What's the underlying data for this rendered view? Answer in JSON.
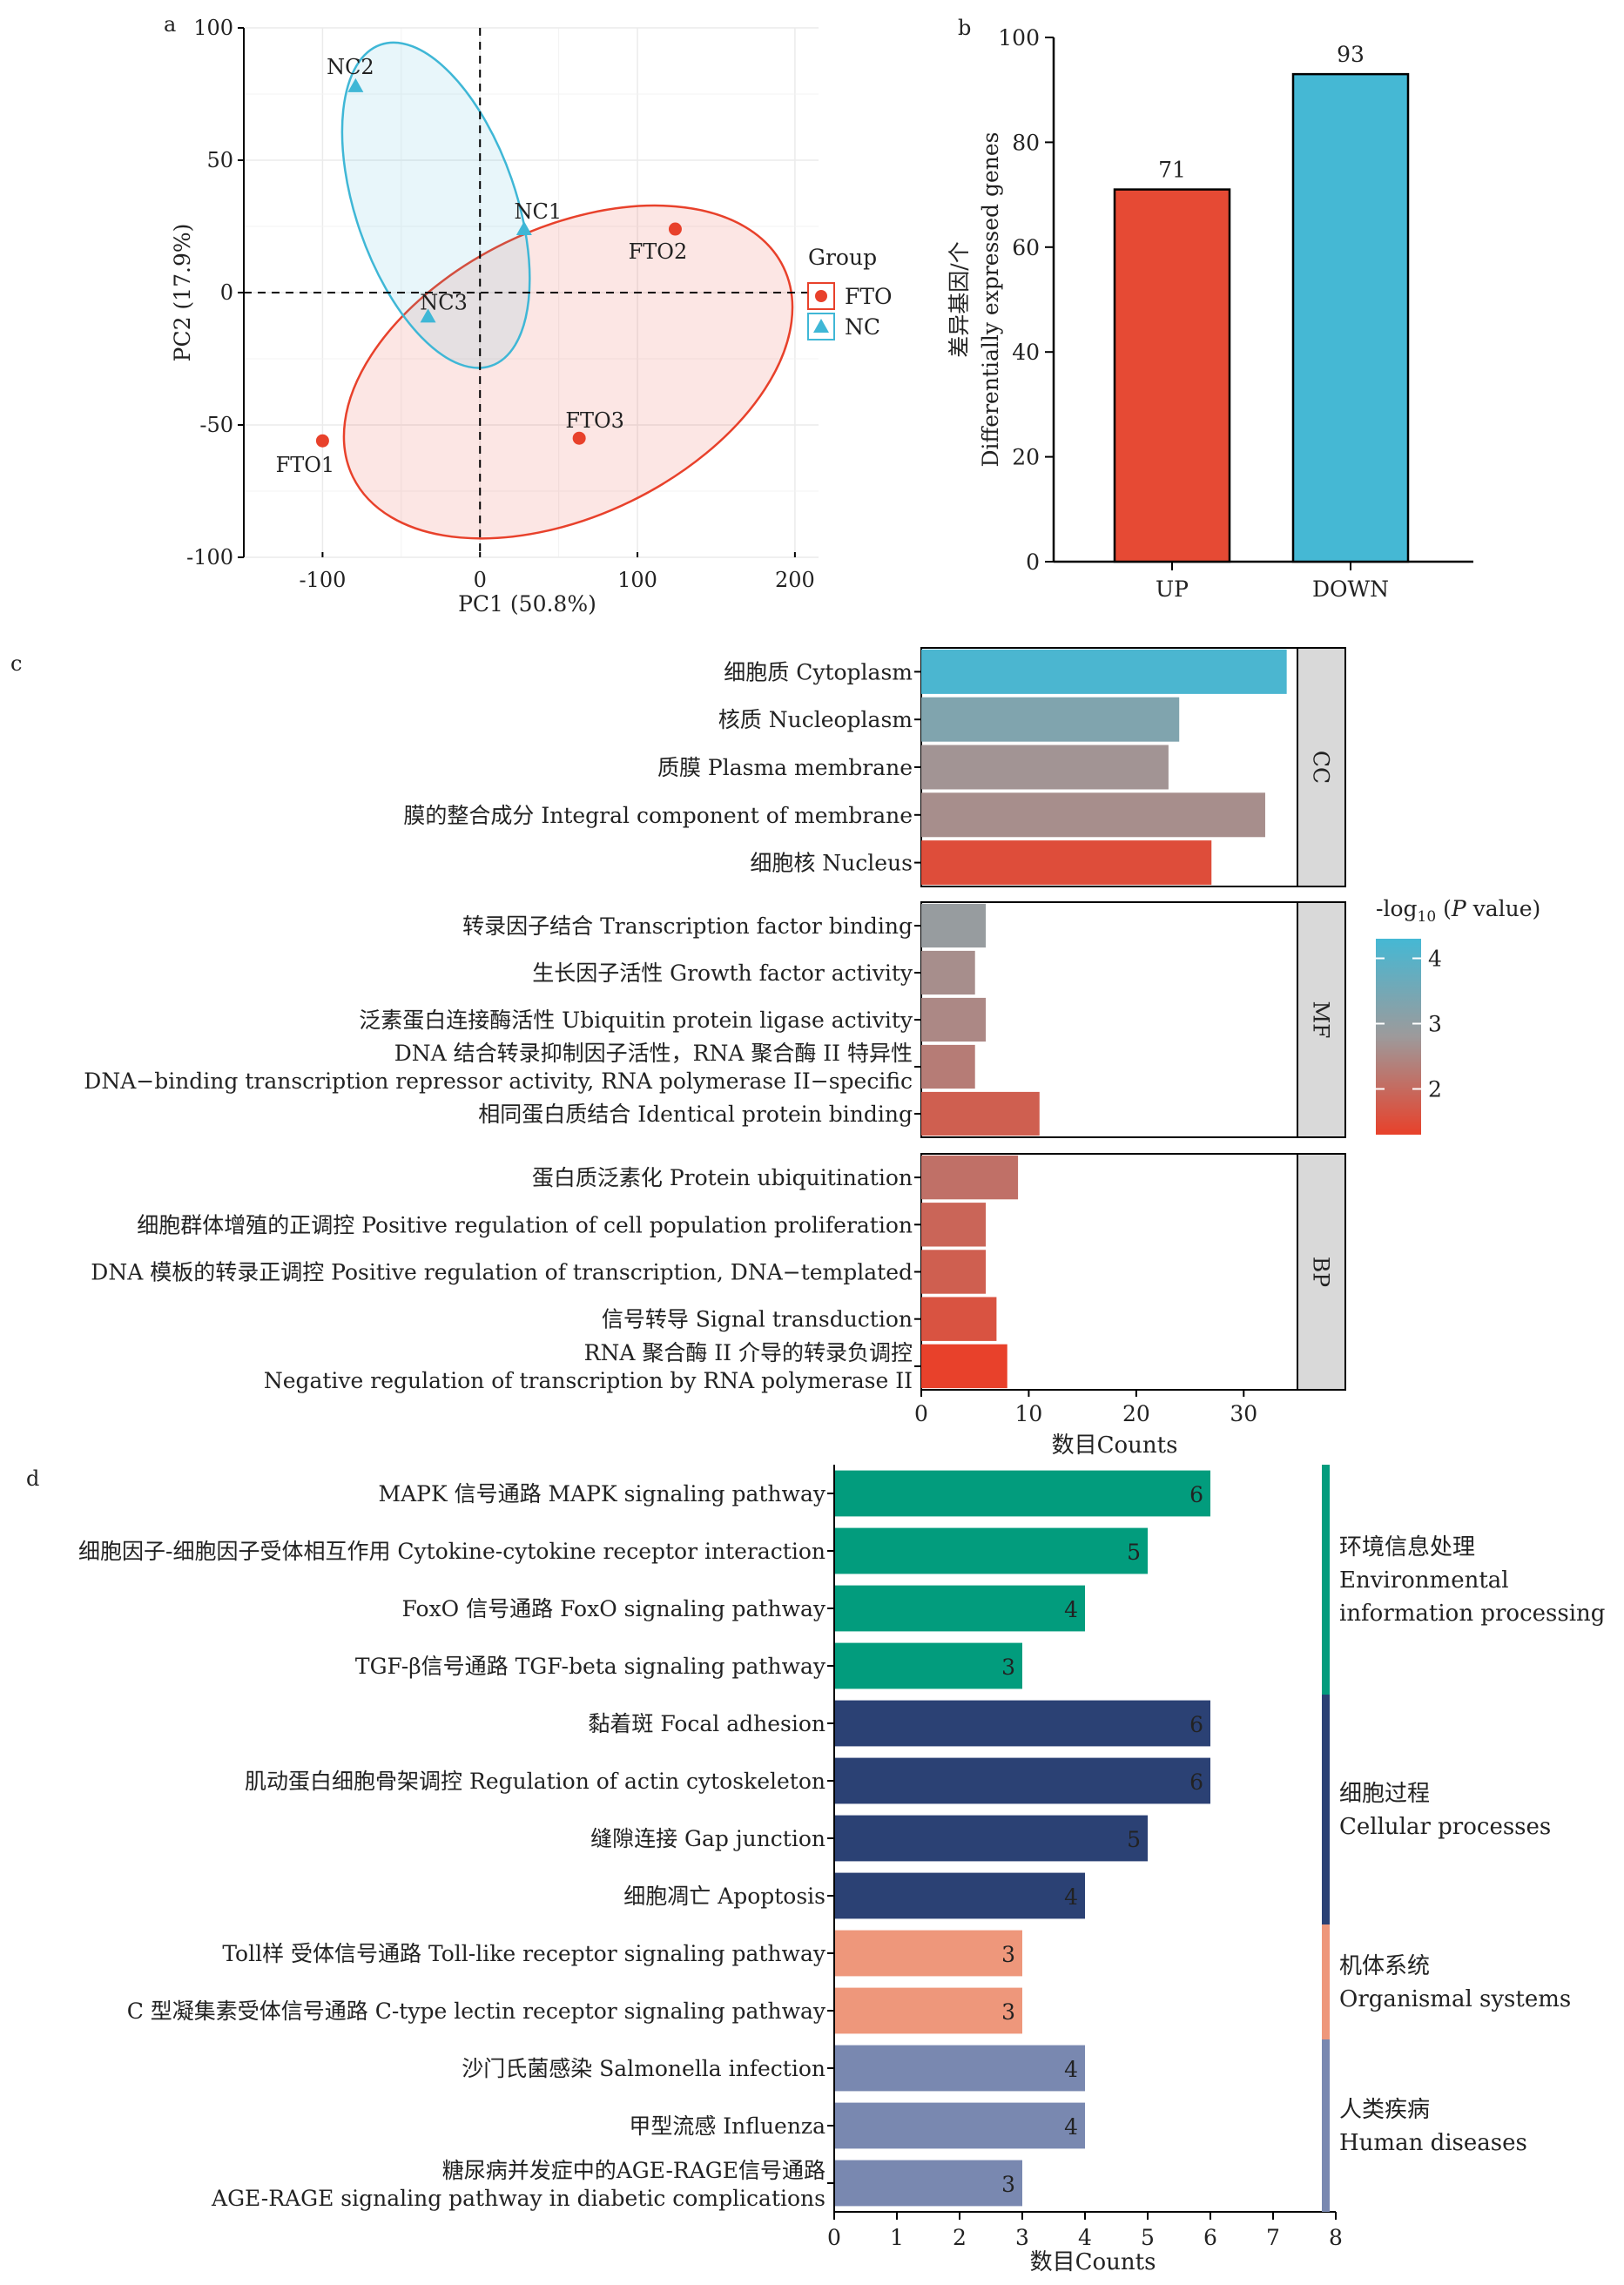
{
  "chart_data": [
    {
      "panel": "a",
      "type": "scatter",
      "xlabel": "PC1 (50.8%)",
      "ylabel": "PC2 (17.9%)",
      "xlim": [
        -150,
        215
      ],
      "ylim": [
        -100,
        100
      ],
      "xticks": [
        -100,
        0,
        100,
        200
      ],
      "yticks": [
        -100,
        -50,
        0,
        50,
        100
      ],
      "legend_title": "Group",
      "series": [
        {
          "name": "FTO",
          "color": "#e8412b",
          "marker": "circle",
          "points": [
            {
              "label": "FTO1",
              "x": -100,
              "y": -56
            },
            {
              "label": "FTO2",
              "x": 124,
              "y": 24
            },
            {
              "label": "FTO3",
              "x": 63,
              "y": -55
            }
          ]
        },
        {
          "name": "NC",
          "color": "#3fb7d6",
          "marker": "triangle",
          "points": [
            {
              "label": "NC1",
              "x": 28,
              "y": 24
            },
            {
              "label": "NC2",
              "x": -79,
              "y": 78
            },
            {
              "label": "NC3",
              "x": -33,
              "y": -9
            }
          ]
        }
      ]
    },
    {
      "panel": "b",
      "type": "bar",
      "categories": [
        "UP",
        "DOWN"
      ],
      "values": [
        71,
        93
      ],
      "colors": [
        "#e64a34",
        "#45b8d4"
      ],
      "ylabel_cn": "差异基因/个",
      "ylabel_en": "Differentially expressed genes",
      "ylim": [
        0,
        100
      ],
      "yticks": [
        0,
        20,
        40,
        60,
        80,
        100
      ]
    },
    {
      "panel": "c",
      "type": "bar",
      "orientation": "horizontal",
      "xlabel": "数目Counts",
      "xlim": [
        0,
        35
      ],
      "xticks": [
        0,
        10,
        20,
        30
      ],
      "legend_title_prefix": "-log",
      "legend_title_sub": "10",
      "legend_title_open": " (",
      "legend_title_italic": "P",
      "legend_title_suffix": " value)",
      "legend_ticks": [
        2,
        3,
        4
      ],
      "groups": [
        {
          "name": "CC",
          "terms": [
            {
              "lines": [
                "细胞质 Cytoplasm"
              ],
              "value": 34,
              "neglog10p": 4.2
            },
            {
              "lines": [
                "核质 Nucleoplasm"
              ],
              "value": 24,
              "neglog10p": 3.3
            },
            {
              "lines": [
                "质膜 Plasma membrane"
              ],
              "value": 23,
              "neglog10p": 2.7
            },
            {
              "lines": [
                "膜的整合成分 Integral component of membrane"
              ],
              "value": 32,
              "neglog10p": 2.6
            },
            {
              "lines": [
                "细胞核 Nucleus"
              ],
              "value": 27,
              "neglog10p": 1.5
            }
          ]
        },
        {
          "name": "MF",
          "terms": [
            {
              "lines": [
                "转录因子结合 Transcription factor binding"
              ],
              "value": 6,
              "neglog10p": 2.9
            },
            {
              "lines": [
                "生长因子活性 Growth factor activity"
              ],
              "value": 5,
              "neglog10p": 2.6
            },
            {
              "lines": [
                "泛素蛋白连接酶活性 Ubiquitin protein ligase activity"
              ],
              "value": 6,
              "neglog10p": 2.5
            },
            {
              "lines": [
                "DNA 结合转录抑制因子活性，RNA 聚合酶 II 特异性",
                "DNA−binding transcription repressor activity, RNA polymerase II−specific"
              ],
              "value": 5,
              "neglog10p": 2.3
            },
            {
              "lines": [
                "相同蛋白质结合 Identical protein binding"
              ],
              "value": 11,
              "neglog10p": 1.8
            }
          ]
        },
        {
          "name": "BP",
          "terms": [
            {
              "lines": [
                "蛋白质泛素化 Protein ubiquitination"
              ],
              "value": 9,
              "neglog10p": 2.1
            },
            {
              "lines": [
                "细胞群体增殖的正调控 Positive regulation of cell population proliferation"
              ],
              "value": 6,
              "neglog10p": 1.9
            },
            {
              "lines": [
                "DNA 模板的转录正调控 Positive regulation of transcription, DNA−templated"
              ],
              "value": 6,
              "neglog10p": 1.8
            },
            {
              "lines": [
                "信号转导 Signal transduction"
              ],
              "value": 7,
              "neglog10p": 1.6
            },
            {
              "lines": [
                "RNA 聚合酶 II 介导的转录负调控",
                "Negative regulation of transcription by RNA polymerase II"
              ],
              "value": 8,
              "neglog10p": 1.3
            }
          ]
        }
      ]
    },
    {
      "panel": "d",
      "type": "bar",
      "orientation": "horizontal",
      "xlabel": "数目Counts",
      "xlim": [
        0,
        8
      ],
      "xticks": [
        0,
        1,
        2,
        3,
        4,
        5,
        6,
        7,
        8
      ],
      "categories": [
        {
          "name_lines": [
            "环境信息处理",
            "Environmental",
            "information processing"
          ],
          "color": "#029c7d"
        },
        {
          "name_lines": [
            "细胞过程",
            "Cellular processes"
          ],
          "color": "#2b4174"
        },
        {
          "name_lines": [
            "机体系统",
            "Organismal systems"
          ],
          "color": "#ee977b"
        },
        {
          "name_lines": [
            "人类疾病",
            "Human diseases"
          ],
          "color": "#7988b0"
        }
      ],
      "bars": [
        {
          "lines": [
            "MAPK 信号通路 MAPK signaling pathway"
          ],
          "value": 6,
          "category": 0
        },
        {
          "lines": [
            "细胞因子-细胞因子受体相互作用 Cytokine-cytokine receptor interaction"
          ],
          "value": 5,
          "category": 0
        },
        {
          "lines": [
            "FoxO 信号通路 FoxO signaling pathway"
          ],
          "value": 4,
          "category": 0
        },
        {
          "lines": [
            "TGF-β信号通路 TGF-beta signaling pathway"
          ],
          "value": 3,
          "category": 0
        },
        {
          "lines": [
            "黏着斑 Focal adhesion"
          ],
          "value": 6,
          "category": 1
        },
        {
          "lines": [
            "肌动蛋白细胞骨架调控 Regulation of actin cytoskeleton"
          ],
          "value": 6,
          "category": 1
        },
        {
          "lines": [
            "缝隙连接 Gap junction"
          ],
          "value": 5,
          "category": 1
        },
        {
          "lines": [
            "细胞凋亡 Apoptosis"
          ],
          "value": 4,
          "category": 1
        },
        {
          "lines": [
            "Toll样 受体信号通路 Toll-like receptor signaling pathway"
          ],
          "value": 3,
          "category": 2
        },
        {
          "lines": [
            "C 型凝集素受体信号通路 C-type lectin receptor signaling pathway"
          ],
          "value": 3,
          "category": 2
        },
        {
          "lines": [
            "沙门氏菌感染 Salmonella infection"
          ],
          "value": 4,
          "category": 3
        },
        {
          "lines": [
            "甲型流感 Influenza"
          ],
          "value": 4,
          "category": 3
        },
        {
          "lines": [
            "糖尿病并发症中的AGE-RAGE信号通路",
            "AGE-RAGE signaling pathway in diabetic complications"
          ],
          "value": 3,
          "category": 3
        }
      ]
    }
  ]
}
